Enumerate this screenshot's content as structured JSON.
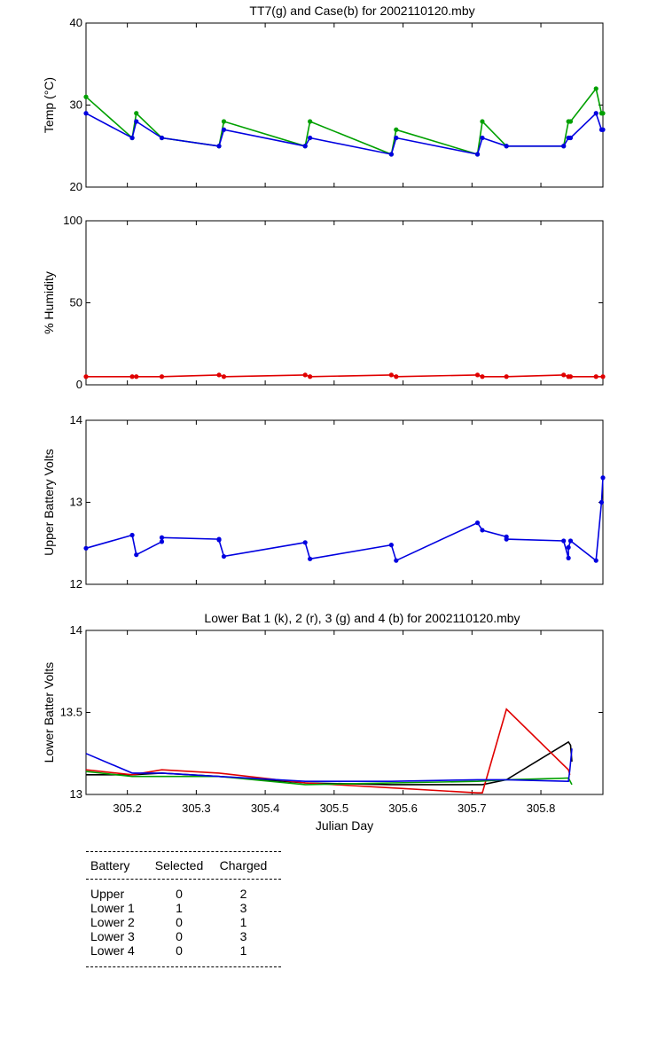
{
  "chart_data": [
    {
      "type": "line",
      "title": "TT7(g) and Case(b) for 2002110120.mby",
      "xlabel": "",
      "ylabel": "Temp  (°C)",
      "xlim": [
        305.14,
        305.89
      ],
      "ylim": [
        20,
        40
      ],
      "yticks": [
        20,
        30,
        40
      ],
      "markers": true,
      "series": [
        {
          "color": "#00a000",
          "x": [
            305.14,
            305.207,
            305.213,
            305.25,
            305.333,
            305.34,
            305.458,
            305.465,
            305.583,
            305.59,
            305.708,
            305.715,
            305.75,
            305.833,
            305.84,
            305.843,
            305.88,
            305.888,
            305.89
          ],
          "y": [
            31,
            26,
            29,
            26,
            25,
            28,
            25,
            28,
            24,
            27,
            24,
            28,
            25,
            25,
            28,
            28,
            32,
            29,
            29
          ]
        },
        {
          "color": "#0000e0",
          "x": [
            305.14,
            305.207,
            305.213,
            305.25,
            305.333,
            305.34,
            305.458,
            305.465,
            305.583,
            305.59,
            305.708,
            305.715,
            305.75,
            305.833,
            305.84,
            305.843,
            305.88,
            305.888,
            305.89
          ],
          "y": [
            29,
            26,
            28,
            26,
            25,
            27,
            25,
            26,
            24,
            26,
            24,
            26,
            25,
            25,
            26,
            26,
            29,
            27,
            27
          ]
        }
      ]
    },
    {
      "type": "line",
      "title": "",
      "xlabel": "",
      "ylabel": "% Humidity",
      "xlim": [
        305.14,
        305.89
      ],
      "ylim": [
        0,
        100
      ],
      "yticks": [
        0,
        50,
        100
      ],
      "markers": true,
      "series": [
        {
          "color": "#e00000",
          "x": [
            305.14,
            305.207,
            305.213,
            305.25,
            305.333,
            305.34,
            305.458,
            305.465,
            305.583,
            305.59,
            305.708,
            305.715,
            305.75,
            305.833,
            305.84,
            305.843,
            305.88,
            305.89
          ],
          "y": [
            5,
            5,
            5,
            5,
            6,
            5,
            6,
            5,
            6,
            5,
            6,
            5,
            5,
            6,
            5,
            5,
            5,
            5
          ]
        }
      ]
    },
    {
      "type": "line",
      "title": "",
      "xlabel": "",
      "ylabel": "Upper Battery Volts",
      "xlim": [
        305.14,
        305.89
      ],
      "ylim": [
        12,
        14
      ],
      "yticks": [
        12,
        13,
        14
      ],
      "markers": true,
      "series": [
        {
          "color": "#0000e0",
          "x": [
            305.14,
            305.207,
            305.213,
            305.25,
            305.25,
            305.333,
            305.333,
            305.34,
            305.458,
            305.465,
            305.583,
            305.59,
            305.708,
            305.715,
            305.75,
            305.75,
            305.833,
            305.84,
            305.84,
            305.843,
            305.88,
            305.888,
            305.89
          ],
          "y": [
            12.44,
            12.6,
            12.36,
            12.52,
            12.57,
            12.55,
            12.54,
            12.34,
            12.51,
            12.31,
            12.48,
            12.29,
            12.75,
            12.66,
            12.58,
            12.55,
            12.53,
            12.32,
            12.45,
            12.53,
            12.29,
            13.0,
            13.3
          ]
        }
      ]
    },
    {
      "type": "line",
      "title": "Lower Bat 1 (k), 2 (r), 3 (g) and 4 (b) for 2002110120.mby",
      "xlabel": "Julian Day",
      "ylabel": "Lower Batter Volts",
      "xlim": [
        305.14,
        305.89
      ],
      "ylim": [
        13,
        14
      ],
      "yticks": [
        13,
        13.5,
        14
      ],
      "xticks": [
        305.2,
        305.3,
        305.4,
        305.5,
        305.6,
        305.7,
        305.8
      ],
      "xticklabels": [
        "305.2",
        "305.3",
        "305.4",
        "305.5",
        "305.6",
        "305.7",
        "305.8"
      ],
      "markers": false,
      "series": [
        {
          "color": "#000000",
          "x": [
            305.14,
            305.207,
            305.25,
            305.333,
            305.458,
            305.583,
            305.715,
            305.75,
            305.84,
            305.843,
            305.845
          ],
          "y": [
            13.12,
            13.12,
            13.13,
            13.11,
            13.07,
            13.06,
            13.06,
            13.09,
            13.32,
            13.3,
            13.2
          ]
        },
        {
          "color": "#e00000",
          "x": [
            305.14,
            305.207,
            305.25,
            305.333,
            305.458,
            305.583,
            305.708,
            305.715,
            305.75,
            305.84,
            305.842
          ],
          "y": [
            13.15,
            13.12,
            13.15,
            13.13,
            13.07,
            13.04,
            13.01,
            13.01,
            13.52,
            13.15,
            13.12
          ]
        },
        {
          "color": "#00a000",
          "x": [
            305.14,
            305.207,
            305.25,
            305.333,
            305.458,
            305.583,
            305.708,
            305.75,
            305.84,
            305.845
          ],
          "y": [
            13.14,
            13.11,
            13.11,
            13.11,
            13.06,
            13.07,
            13.08,
            13.09,
            13.1,
            13.06
          ]
        },
        {
          "color": "#0000e0",
          "x": [
            305.14,
            305.207,
            305.25,
            305.333,
            305.458,
            305.583,
            305.708,
            305.75,
            305.84,
            305.842,
            305.845
          ],
          "y": [
            13.25,
            13.13,
            13.13,
            13.11,
            13.08,
            13.08,
            13.09,
            13.09,
            13.08,
            13.15,
            13.28
          ]
        }
      ]
    }
  ],
  "table": {
    "header": [
      "Battery",
      "Selected",
      "Charged"
    ],
    "rows": [
      [
        "Upper",
        "0",
        "2"
      ],
      [
        "Lower 1",
        "1",
        "3"
      ],
      [
        "Lower 2",
        "0",
        "1"
      ],
      [
        "Lower 3",
        "0",
        "3"
      ],
      [
        "Lower 4",
        "0",
        "1"
      ]
    ]
  }
}
